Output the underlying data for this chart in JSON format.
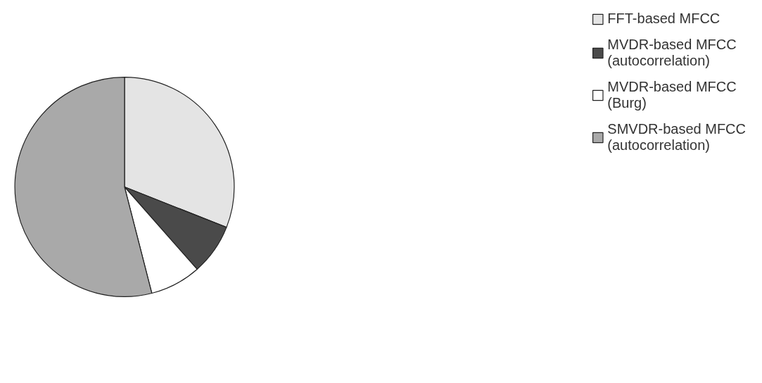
{
  "chart_data": {
    "type": "pie",
    "categories": [
      "FFT-based MFCC",
      "MVDR-based MFCC\n(autocorrelation)",
      "MVDR-based MFCC\n(Burg)",
      "SMVDR-based MFCC\n(autocorrelation)"
    ],
    "values": [
      31,
      7.5,
      7.5,
      54
    ],
    "colors": [
      "#e4e4e4",
      "#4a4a4a",
      "#ffffff",
      "#a9a9a9"
    ],
    "legend": "right"
  }
}
